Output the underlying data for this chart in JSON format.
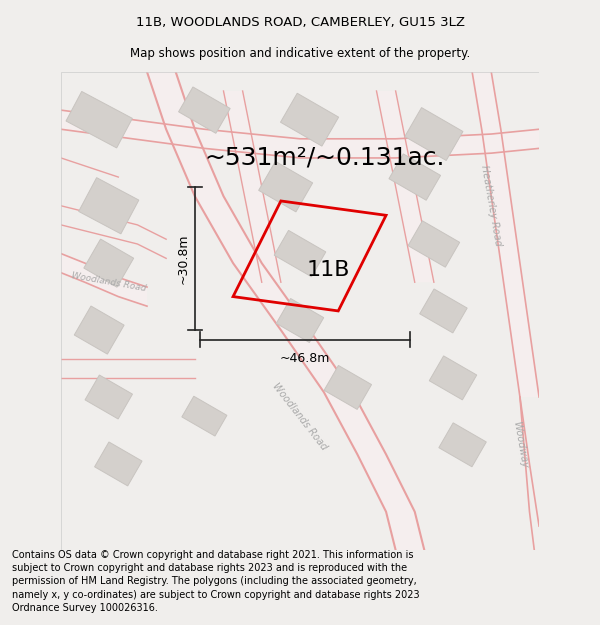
{
  "title_line1": "11B, WOODLANDS ROAD, CAMBERLEY, GU15 3LZ",
  "title_line2": "Map shows position and indicative extent of the property.",
  "area_label": "~531m²/~0.131ac.",
  "property_label": "11B",
  "dim_width": "~46.8m",
  "dim_height": "~30.8m",
  "footer_text": "Contains OS data © Crown copyright and database right 2021. This information is subject to Crown copyright and database rights 2023 and is reproduced with the permission of HM Land Registry. The polygons (including the associated geometry, namely x, y co-ordinates) are subject to Crown copyright and database rights 2023 Ordnance Survey 100026316.",
  "bg_color": "#f0eeec",
  "map_bg": "#f0eeec",
  "road_color": "#e8a0a0",
  "road_fill": "#f5eeee",
  "building_color": "#d4d0cc",
  "building_edge": "#c8c4c0",
  "property_color": "#f0eeec",
  "property_edge": "#e00000",
  "dim_color": "#222222",
  "title_color": "#000000",
  "footer_color": "#000000",
  "road_label_color": "#aaaaaa",
  "title_fontsize": 9.5,
  "subtitle_fontsize": 8.5,
  "area_fontsize": 18,
  "label_fontsize": 16,
  "dim_fontsize": 9,
  "footer_fontsize": 7
}
